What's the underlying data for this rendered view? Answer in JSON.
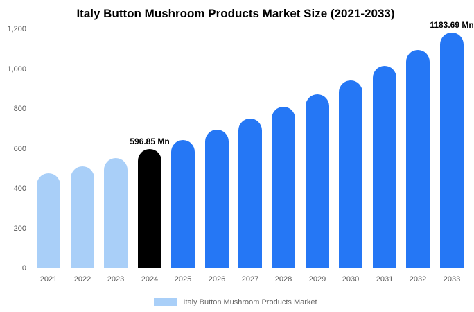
{
  "chart_data": {
    "type": "bar",
    "title": "Italy Button Mushroom Products Market Size (2021-2033)",
    "categories": [
      "2021",
      "2022",
      "2023",
      "2024",
      "2025",
      "2026",
      "2027",
      "2028",
      "2029",
      "2030",
      "2031",
      "2032",
      "2033"
    ],
    "values": [
      475,
      512,
      553,
      596.85,
      644,
      695,
      750,
      809,
      873,
      942,
      1017,
      1097,
      1183.69
    ],
    "colors": [
      "#A9CFF8",
      "#A9CFF8",
      "#A9CFF8",
      "#000000",
      "#2577F5",
      "#2577F5",
      "#2577F5",
      "#2577F5",
      "#2577F5",
      "#2577F5",
      "#2577F5",
      "#2577F5",
      "#2577F5"
    ],
    "data_labels": {
      "2024": "596.85 Mn",
      "2033": "1183.69 Mn"
    },
    "ylim": [
      0,
      1200
    ],
    "ytick_labels": [
      "0",
      "200",
      "400",
      "600",
      "800",
      "1,000",
      "1,200"
    ],
    "xlabel": "",
    "ylabel": "",
    "grid": false,
    "legend_position": "bottom",
    "legend": [
      {
        "label": "Italy Button Mushroom Products Market",
        "color": "#A9CFF8"
      }
    ]
  }
}
